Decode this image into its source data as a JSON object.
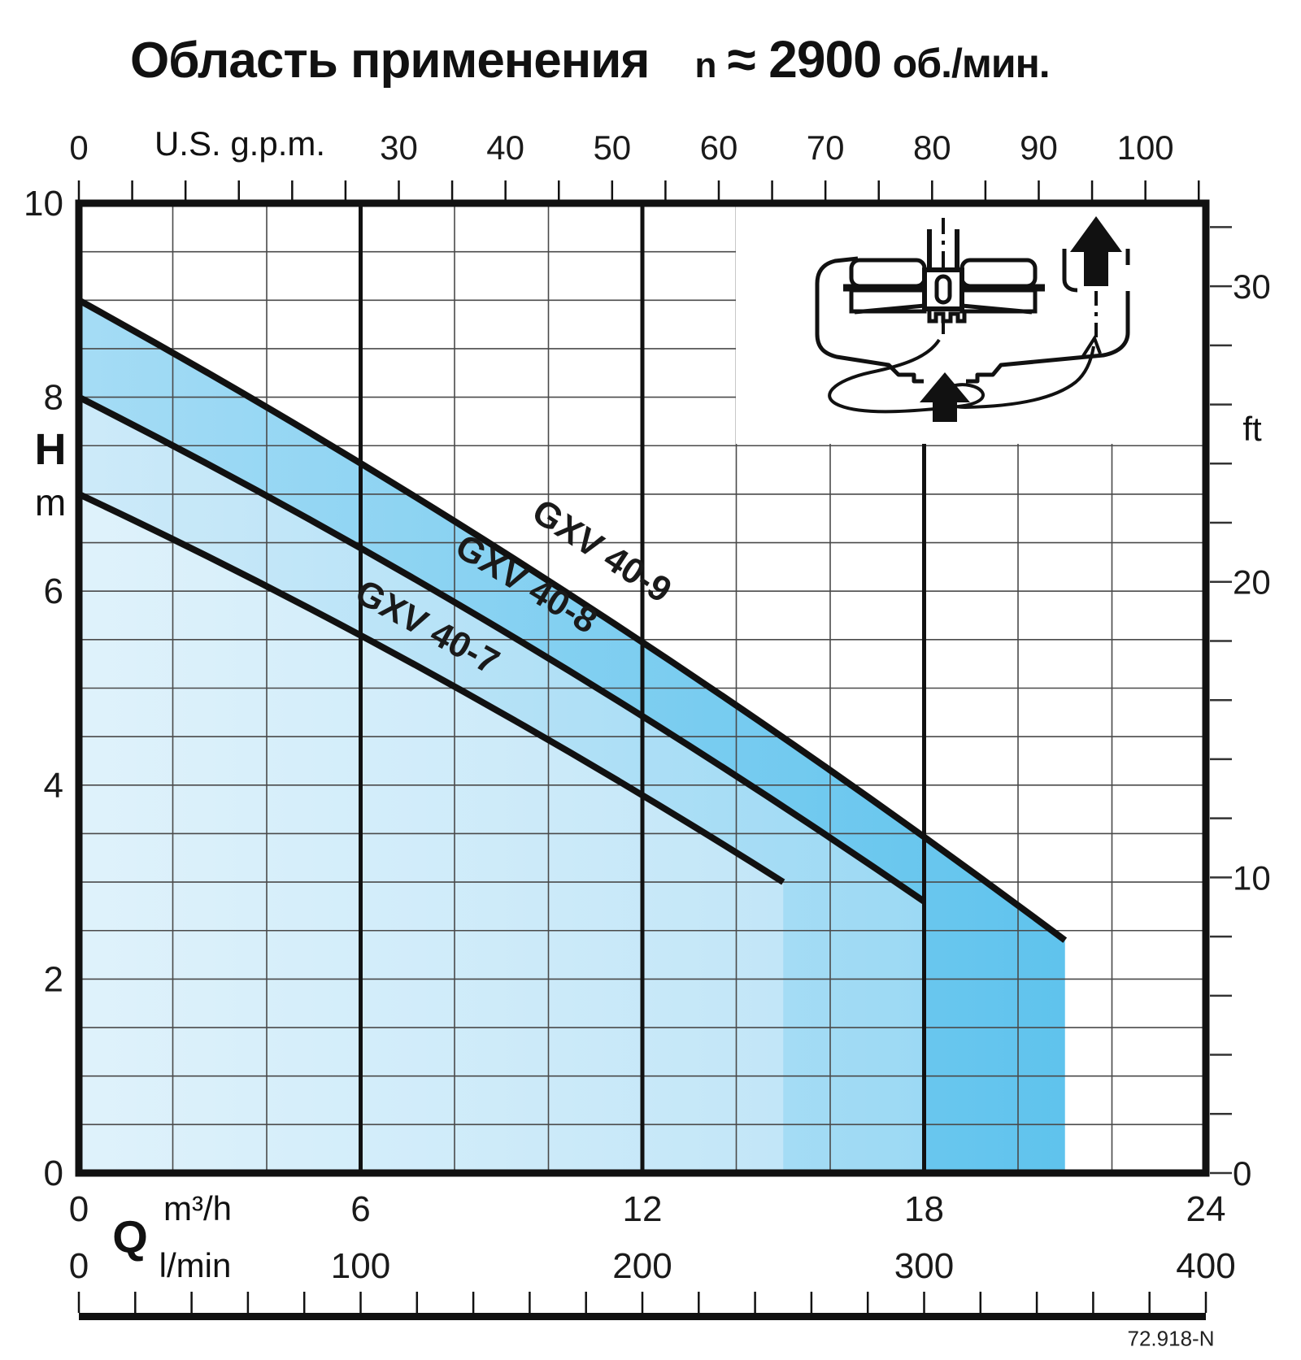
{
  "chart_data": {
    "type": "area",
    "title": {
      "main": "Область применения",
      "speed_symbol": "n",
      "speed_value": "≈ 2900",
      "speed_unit": "об./мин."
    },
    "x_axes": {
      "usgpm": {
        "unit": "U.S. g.p.m.",
        "labeled_ticks": [
          0,
          30,
          40,
          50,
          60,
          70,
          80,
          90,
          100
        ],
        "minor_tick_step": 5,
        "gpm_per_m3h": 4.40287
      },
      "m3h": {
        "unit": "m³/h",
        "symbol": "Q",
        "range": [
          0,
          24
        ],
        "labeled_ticks": [
          0,
          6,
          12,
          18,
          24
        ],
        "grid_step": 2,
        "bold_gridlines": [
          6,
          12,
          18
        ]
      },
      "lmin": {
        "unit": "l/min",
        "range": [
          0,
          400
        ],
        "labeled_ticks": [
          0,
          100,
          200,
          300,
          400
        ],
        "ruler_tick_step": 20
      }
    },
    "y_axes": {
      "meters": {
        "symbol": "H",
        "unit": "m",
        "range": [
          0,
          10
        ],
        "labeled_ticks": [
          10,
          8,
          6,
          4,
          2,
          0
        ],
        "grid_step": 0.5
      },
      "feet": {
        "unit": "ft",
        "labeled_ticks": [
          30,
          20,
          10,
          0
        ],
        "tick_step": 2,
        "m_per_ft": 0.3048
      }
    },
    "series": [
      {
        "name": "GXV 40-9",
        "points_q_h": [
          [
            0,
            9.0
          ],
          [
            10.5,
            5.95
          ],
          [
            21,
            2.4
          ]
        ],
        "fill_from": "#a5dcf5",
        "fill_to": "#5fc3ed"
      },
      {
        "name": "GXV 40-8",
        "points_q_h": [
          [
            0,
            8.0
          ],
          [
            9.0,
            5.6
          ],
          [
            18,
            2.8
          ]
        ],
        "fill_from": "#cdeaf9",
        "fill_to": "#9cd9f4"
      },
      {
        "name": "GXV 40-7",
        "points_q_h": [
          [
            0,
            7.0
          ],
          [
            7.5,
            5.15
          ],
          [
            15,
            3.0
          ]
        ],
        "fill_from": "#dff2fb",
        "fill_to": "#c2e6f8"
      }
    ],
    "line_color": "#111111",
    "footnote": "72.918-N"
  }
}
